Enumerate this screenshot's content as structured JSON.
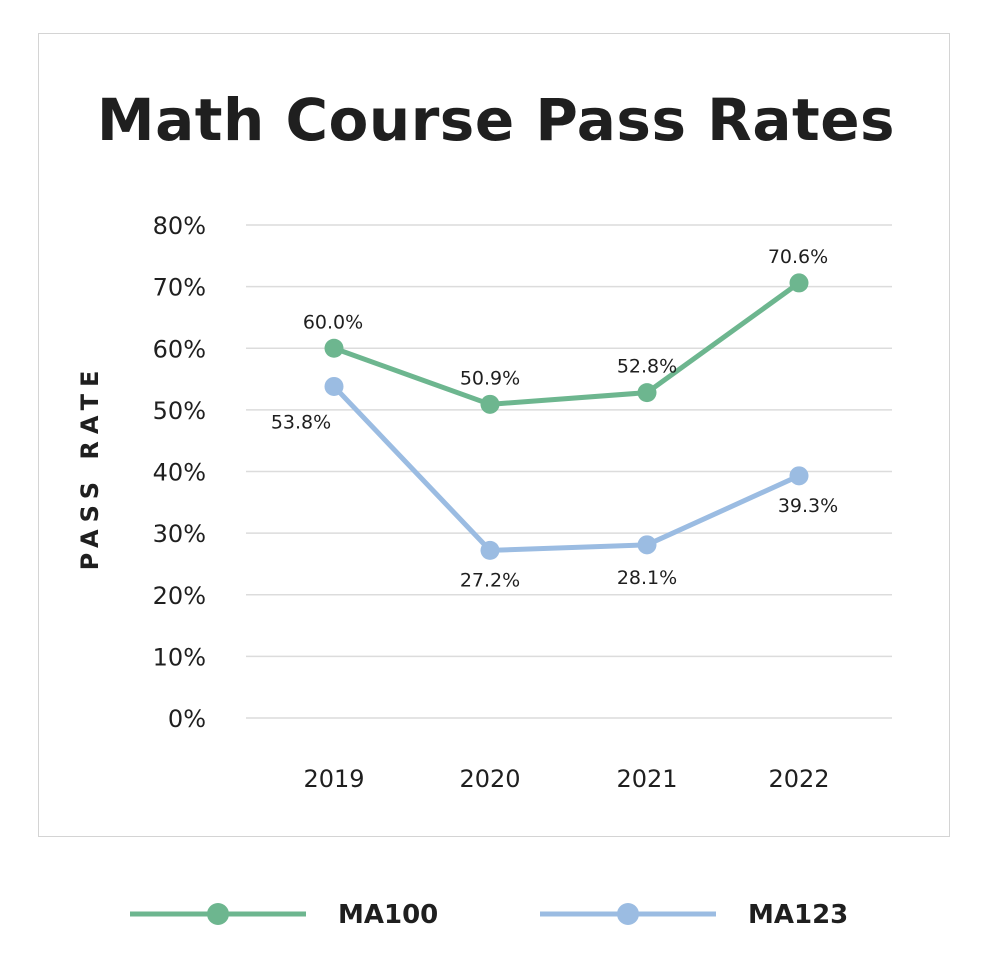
{
  "chart_data": {
    "type": "line",
    "title": "Math Course Pass Rates",
    "ylabel": "PASS RATE",
    "xlabel": "",
    "categories": [
      "2019",
      "2020",
      "2021",
      "2022"
    ],
    "yticks": [
      "0%",
      "10%",
      "20%",
      "30%",
      "40%",
      "50%",
      "60%",
      "70%",
      "80%"
    ],
    "ylim": [
      0,
      80
    ],
    "grid": true,
    "legend_position": "bottom",
    "series": [
      {
        "name": "MA100",
        "color": "#6db68f",
        "values": [
          60.0,
          50.9,
          52.8,
          70.6
        ],
        "labels": [
          "60.0%",
          "50.9%",
          "52.8%",
          "70.6%"
        ]
      },
      {
        "name": "MA123",
        "color": "#9bbce2",
        "values": [
          53.8,
          27.2,
          28.1,
          39.3
        ],
        "labels": [
          "53.8%",
          "27.2%",
          "28.1%",
          "39.3%"
        ]
      }
    ]
  }
}
